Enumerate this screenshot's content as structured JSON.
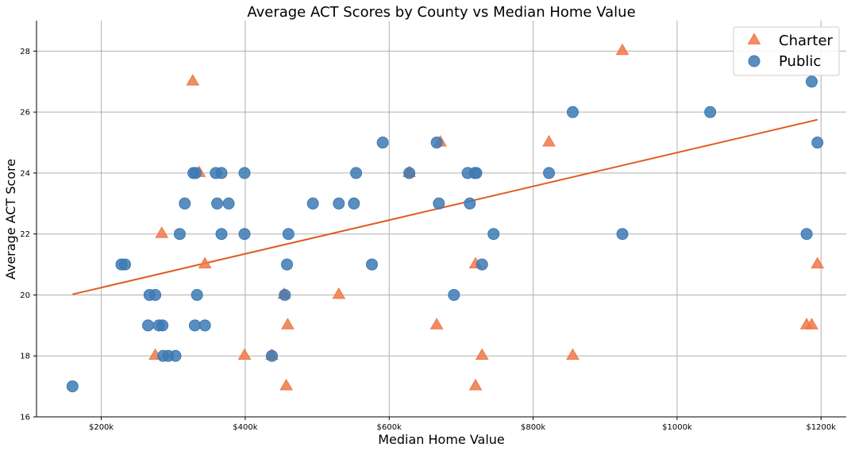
{
  "chart_data": {
    "type": "scatter",
    "title": "Average ACT Scores by County vs Median Home Value",
    "xlabel": "Median Home Value",
    "ylabel": "Average ACT Score",
    "xlim": [
      110000,
      1235000
    ],
    "ylim": [
      16,
      29
    ],
    "xticks": [
      {
        "value": 200000,
        "label": "$200k"
      },
      {
        "value": 400000,
        "label": "$400k"
      },
      {
        "value": 600000,
        "label": "$600k"
      },
      {
        "value": 800000,
        "label": "$800k"
      },
      {
        "value": 1000000,
        "label": "$1000k"
      },
      {
        "value": 1200000,
        "label": "$1200k"
      }
    ],
    "yticks": [
      16,
      18,
      20,
      22,
      24,
      26,
      28
    ],
    "grid": true,
    "legend_position": "top-right",
    "series": [
      {
        "name": "Charter",
        "marker": "triangle",
        "color": "#f07848",
        "points": [
          [
            275000,
            18
          ],
          [
            284000,
            22
          ],
          [
            327000,
            27
          ],
          [
            336000,
            24
          ],
          [
            344000,
            21
          ],
          [
            399000,
            18
          ],
          [
            437000,
            18
          ],
          [
            454000,
            20
          ],
          [
            457000,
            17
          ],
          [
            459000,
            19
          ],
          [
            530000,
            20
          ],
          [
            628000,
            24
          ],
          [
            666000,
            19
          ],
          [
            671000,
            25
          ],
          [
            720000,
            21
          ],
          [
            720000,
            17
          ],
          [
            729000,
            18
          ],
          [
            822000,
            25
          ],
          [
            855000,
            18
          ],
          [
            924000,
            28
          ],
          [
            1180000,
            19
          ],
          [
            1187000,
            19
          ],
          [
            1195000,
            21
          ]
        ]
      },
      {
        "name": "Public",
        "marker": "circle",
        "color": "#3d7ab4",
        "points": [
          [
            160000,
            17
          ],
          [
            228000,
            21
          ],
          [
            233000,
            21
          ],
          [
            265000,
            19
          ],
          [
            267000,
            20
          ],
          [
            275000,
            20
          ],
          [
            280000,
            19
          ],
          [
            285000,
            19
          ],
          [
            286000,
            18
          ],
          [
            293000,
            18
          ],
          [
            303000,
            18
          ],
          [
            309000,
            22
          ],
          [
            316000,
            23
          ],
          [
            328000,
            24
          ],
          [
            331000,
            24
          ],
          [
            330000,
            19
          ],
          [
            333000,
            20
          ],
          [
            344000,
            19
          ],
          [
            359000,
            24
          ],
          [
            361000,
            23
          ],
          [
            367000,
            24
          ],
          [
            367000,
            22
          ],
          [
            377000,
            23
          ],
          [
            399000,
            24
          ],
          [
            399000,
            22
          ],
          [
            437000,
            18
          ],
          [
            455000,
            20
          ],
          [
            458000,
            21
          ],
          [
            460000,
            22
          ],
          [
            494000,
            23
          ],
          [
            530000,
            23
          ],
          [
            551000,
            23
          ],
          [
            554000,
            24
          ],
          [
            576000,
            21
          ],
          [
            591000,
            25
          ],
          [
            628000,
            24
          ],
          [
            666000,
            25
          ],
          [
            669000,
            23
          ],
          [
            690000,
            20
          ],
          [
            709000,
            24
          ],
          [
            712000,
            23
          ],
          [
            719000,
            24
          ],
          [
            721000,
            24
          ],
          [
            729000,
            21
          ],
          [
            745000,
            22
          ],
          [
            822000,
            24
          ],
          [
            855000,
            26
          ],
          [
            924000,
            22
          ],
          [
            1046000,
            26
          ],
          [
            1180000,
            22
          ],
          [
            1187000,
            27
          ],
          [
            1195000,
            25
          ]
        ]
      }
    ],
    "trendline": {
      "color": "#e05c20",
      "from": [
        160000,
        20.02
      ],
      "to": [
        1195000,
        25.75
      ]
    }
  }
}
